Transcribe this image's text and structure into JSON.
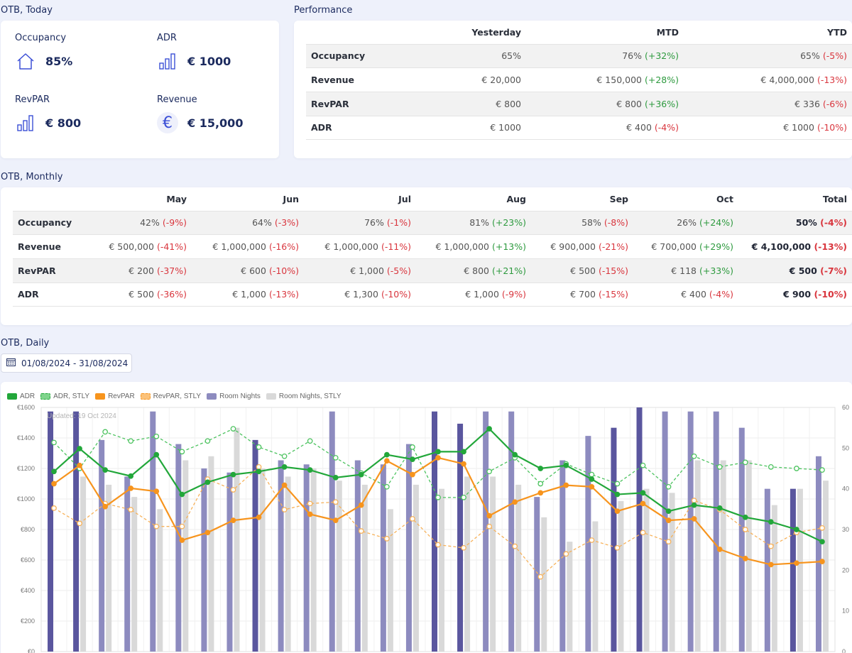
{
  "today": {
    "title": "OTB, Today",
    "kpis": [
      {
        "label": "Occupancy",
        "value": "85%",
        "icon": "house-icon"
      },
      {
        "label": "ADR",
        "value": "€ 1000",
        "icon": "bar-chart-icon"
      },
      {
        "label": "RevPAR",
        "value": "€ 800",
        "icon": "bar-chart-icon"
      },
      {
        "label": "Revenue",
        "value": "€ 15,000",
        "icon": "euro-icon",
        "icon_glyph": "€"
      }
    ]
  },
  "performance": {
    "title": "Performance",
    "columns": [
      "Yesterday",
      "MTD",
      "YTD"
    ],
    "rows": [
      {
        "label": "Occupancy",
        "cells": [
          {
            "v": "65%",
            "c": ""
          },
          {
            "v": "76%",
            "c": "(+32%)"
          },
          {
            "v": "65%",
            "c": "(-5%)"
          }
        ]
      },
      {
        "label": "Revenue",
        "cells": [
          {
            "v": "€ 20,000",
            "c": ""
          },
          {
            "v": "€ 150,000",
            "c": "(+28%)"
          },
          {
            "v": "€ 4,000,000",
            "c": "(-13%)"
          }
        ]
      },
      {
        "label": "RevPAR",
        "cells": [
          {
            "v": "€ 800",
            "c": ""
          },
          {
            "v": "€ 800",
            "c": "(+36%)"
          },
          {
            "v": "€ 336",
            "c": "(-6%)"
          }
        ]
      },
      {
        "label": "ADR",
        "cells": [
          {
            "v": "€ 1000",
            "c": ""
          },
          {
            "v": "€ 400",
            "c": "(-4%)"
          },
          {
            "v": "€ 1000",
            "c": "(-10%)"
          }
        ]
      }
    ]
  },
  "monthly": {
    "title": "OTB, Monthly",
    "columns": [
      "May",
      "Jun",
      "Jul",
      "Aug",
      "Sep",
      "Oct",
      "Total"
    ],
    "rows": [
      {
        "label": "Occupancy",
        "cells": [
          {
            "v": "42%",
            "c": "(-9%)"
          },
          {
            "v": "64%",
            "c": "(-3%)"
          },
          {
            "v": "76%",
            "c": "(-1%)"
          },
          {
            "v": "81%",
            "c": "(+23%)"
          },
          {
            "v": "58%",
            "c": "(-8%)"
          },
          {
            "v": "26%",
            "c": "(+24%)"
          },
          {
            "v": "50%",
            "c": "(-4%)"
          }
        ]
      },
      {
        "label": "Revenue",
        "cells": [
          {
            "v": "€ 500,000",
            "c": "(-41%)"
          },
          {
            "v": "€ 1,000,000",
            "c": "(-16%)"
          },
          {
            "v": "€ 1,000,000",
            "c": "(-11%)"
          },
          {
            "v": "€ 1,000,000",
            "c": "(+13%)"
          },
          {
            "v": "€ 900,000",
            "c": "(-21%)"
          },
          {
            "v": "€ 700,000",
            "c": "(+29%)"
          },
          {
            "v": "€ 4,100,000",
            "c": "(-13%)"
          }
        ]
      },
      {
        "label": "RevPAR",
        "cells": [
          {
            "v": "€ 200",
            "c": "(-37%)"
          },
          {
            "v": "€ 600",
            "c": "(-10%)"
          },
          {
            "v": "€ 1,000",
            "c": "(-5%)"
          },
          {
            "v": "€ 800",
            "c": "(+21%)"
          },
          {
            "v": "€ 500",
            "c": "(-15%)"
          },
          {
            "v": "€ 118",
            "c": "(+33%)"
          },
          {
            "v": "€ 500",
            "c": "(-7%)"
          }
        ]
      },
      {
        "label": "ADR",
        "cells": [
          {
            "v": "€ 500",
            "c": "(-36%)"
          },
          {
            "v": "€ 1,000",
            "c": "(-13%)"
          },
          {
            "v": "€ 1,300",
            "c": "(-10%)"
          },
          {
            "v": "€ 1,000",
            "c": "(-9%)"
          },
          {
            "v": "€ 700",
            "c": "(-15%)"
          },
          {
            "v": "€ 400",
            "c": "(-4%)"
          },
          {
            "v": "€ 900",
            "c": "(-10%)"
          }
        ]
      }
    ]
  },
  "daily": {
    "title": "OTB, Daily",
    "date_range": "01/08/2024 - 31/08/2024",
    "updated": "Updated: 19 Oct 2024"
  },
  "colors": {
    "adr": "#22a73a",
    "revpar": "#f7941d",
    "room_nights": "#8d8bbf",
    "room_nights_dark": "#5a569e",
    "room_nights_stly": "#d9d9d9",
    "negative": "#d9363e",
    "positive": "#2e9a3f",
    "title": "#1b2a5e"
  },
  "chart_data": {
    "type": "bar",
    "legend": [
      "ADR",
      "ADR, STLY",
      "RevPAR",
      "RevPAR, STLY",
      "Room Nights",
      "Room Nights, STLY"
    ],
    "left_axis_ticks": [
      "€0",
      "€200",
      "€400",
      "€600",
      "€800",
      "€1000",
      "€1200",
      "€1400",
      "€1600"
    ],
    "right_axis_ticks": [
      "0",
      "10",
      "20",
      "30",
      "40",
      "50",
      "60"
    ],
    "ylim_left": [
      0,
      1600
    ],
    "ylim_right": [
      0,
      60
    ],
    "days": 31,
    "series": [
      {
        "name": "Room Nights",
        "axis": "right",
        "values": [
          59,
          59,
          52,
          43,
          59,
          51,
          45,
          44,
          52,
          47,
          46,
          59,
          47,
          46,
          51,
          59,
          56,
          59,
          59,
          38,
          47,
          53,
          55,
          60,
          59,
          59,
          59,
          55,
          40,
          40,
          48
        ]
      },
      {
        "name": "Room Nights, STLY",
        "axis": "right",
        "values": [
          0,
          43,
          41,
          38,
          35,
          47,
          48,
          55,
          45,
          43,
          45,
          42,
          41,
          35,
          41,
          40,
          43,
          43,
          41,
          33,
          27,
          32,
          37,
          40,
          39,
          47,
          47,
          47,
          36,
          40,
          42
        ]
      },
      {
        "name": "ADR",
        "axis": "left",
        "values": [
          1180,
          1330,
          1190,
          1150,
          1290,
          1030,
          1110,
          1160,
          1180,
          1210,
          1190,
          1140,
          1160,
          1290,
          1260,
          1310,
          1310,
          1460,
          1290,
          1200,
          1220,
          1130,
          1030,
          1040,
          920,
          960,
          940,
          880,
          850,
          800,
          720
        ]
      },
      {
        "name": "ADR, STLY",
        "axis": "left",
        "values": [
          1370,
          1200,
          1440,
          1380,
          1410,
          1310,
          1380,
          1460,
          1340,
          1280,
          1380,
          1270,
          1170,
          1080,
          1340,
          1010,
          1010,
          1180,
          1270,
          1100,
          1230,
          1160,
          1100,
          1220,
          1080,
          1280,
          1210,
          1240,
          1210,
          1200,
          1190
        ]
      },
      {
        "name": "RevPAR",
        "axis": "left",
        "values": [
          1100,
          1220,
          950,
          1070,
          1050,
          730,
          780,
          860,
          880,
          1090,
          900,
          860,
          960,
          1250,
          1160,
          1270,
          1230,
          890,
          980,
          1040,
          1090,
          1080,
          920,
          970,
          860,
          870,
          670,
          610,
          570,
          580,
          590
        ]
      },
      {
        "name": "RevPAR, STLY",
        "axis": "left",
        "values": [
          940,
          840,
          970,
          930,
          820,
          820,
          1130,
          1060,
          1210,
          930,
          970,
          980,
          790,
          740,
          870,
          700,
          680,
          820,
          690,
          490,
          640,
          730,
          680,
          780,
          720,
          990,
          930,
          800,
          690,
          780,
          810
        ]
      }
    ]
  }
}
